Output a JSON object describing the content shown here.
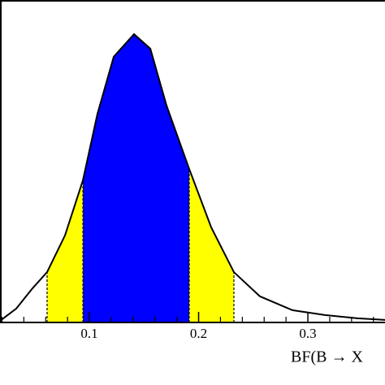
{
  "chart_data": {
    "type": "line",
    "x_label": "BF(B → X",
    "x": [
      0.0182,
      0.0331,
      0.048,
      0.0613,
      0.0777,
      0.0941,
      0.1074,
      0.1223,
      0.1409,
      0.1558,
      0.1706,
      0.1914,
      0.2115,
      0.2323,
      0.2561,
      0.2859,
      0.3156,
      0.3454,
      0.3706
    ],
    "values": [
      0.005,
      0.043,
      0.106,
      0.156,
      0.27,
      0.441,
      0.647,
      0.824,
      0.894,
      0.849,
      0.673,
      0.476,
      0.295,
      0.156,
      0.081,
      0.038,
      0.023,
      0.013,
      0.008
    ],
    "color": "#000000",
    "intervals": [
      {
        "range": [
          0.0613,
          0.2323
        ],
        "color": "#ffff00"
      },
      {
        "range": [
          0.0941,
          0.1914
        ],
        "color": "#0000ff"
      }
    ],
    "xlim": [
      0.0182,
      0.3706
    ],
    "ylim": [
      0,
      1
    ],
    "xticks": [
      0.1,
      0.2,
      0.3
    ],
    "xminorticks": [
      0.02,
      0.04,
      0.06,
      0.08,
      0.12,
      0.14,
      0.16,
      0.18,
      0.22,
      0.24,
      0.26,
      0.28,
      0.32,
      0.34,
      0.36
    ]
  }
}
